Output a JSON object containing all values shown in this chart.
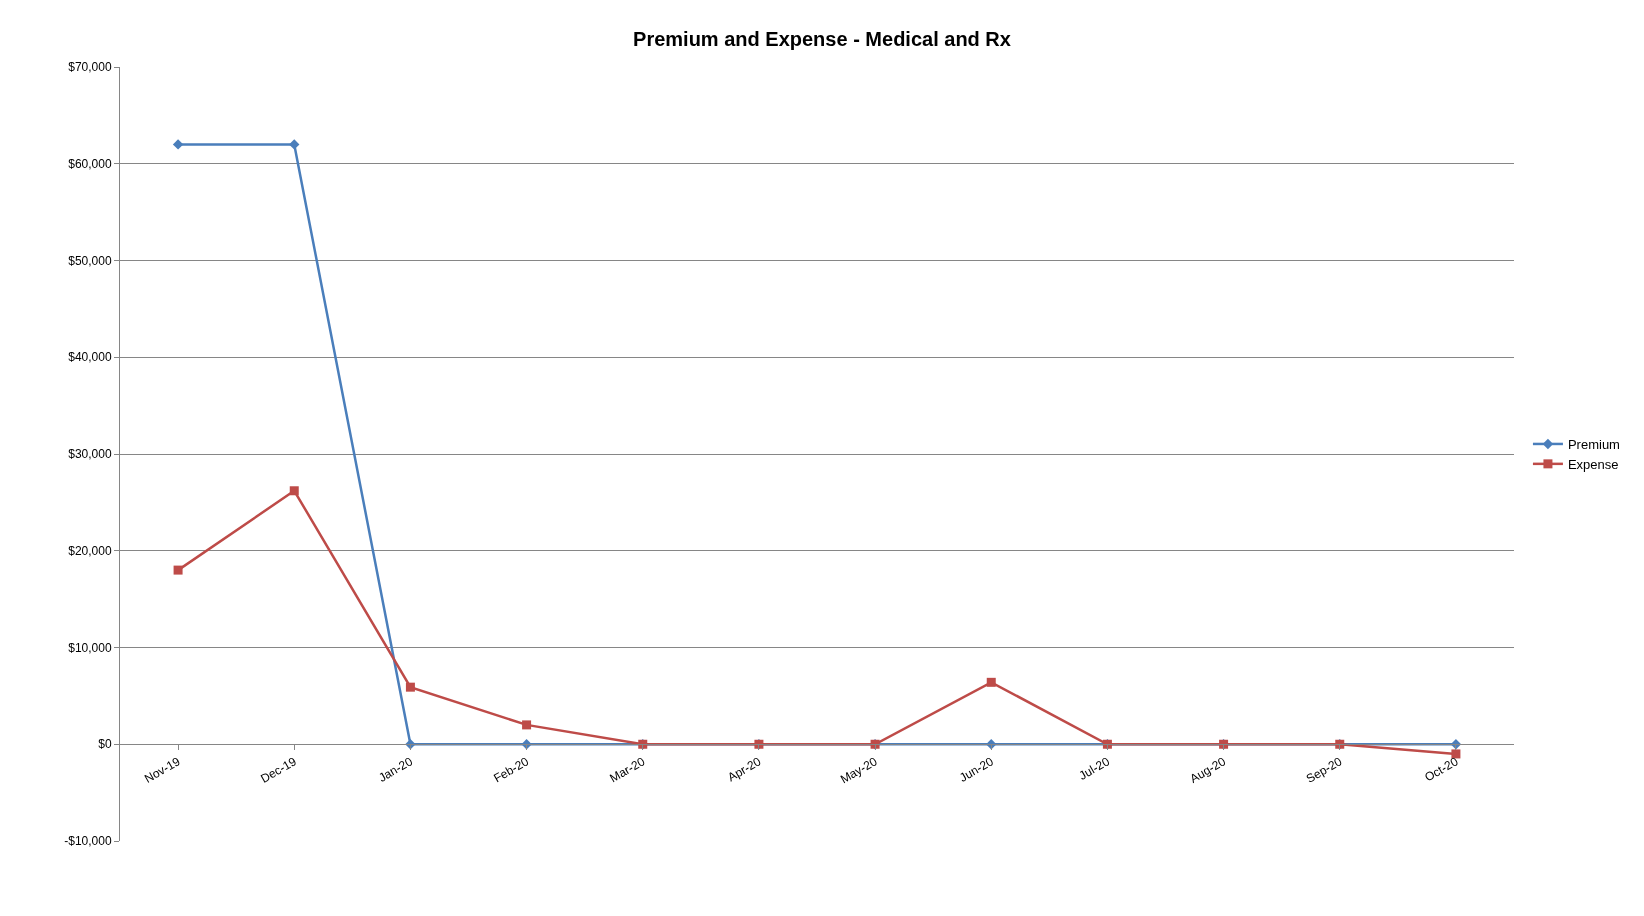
{
  "chart_data": {
    "type": "line",
    "title": "Premium and Expense - Medical and Rx",
    "categories": [
      "Nov-19",
      "Dec-19",
      "Jan-20",
      "Feb-20",
      "Mar-20",
      "Apr-20",
      "May-20",
      "Jun-20",
      "Jul-20",
      "Aug-20",
      "Sep-20",
      "Oct-20"
    ],
    "series": [
      {
        "name": "Premium",
        "color": "#4a7ebb",
        "marker": "diamond",
        "values": [
          62000,
          62000,
          0,
          0,
          0,
          0,
          0,
          0,
          0,
          0,
          0,
          0
        ]
      },
      {
        "name": "Expense",
        "color": "#be4b48",
        "marker": "square",
        "values": [
          18000,
          26200,
          5900,
          2000,
          0,
          0,
          0,
          6400,
          0,
          0,
          0,
          -1000
        ]
      }
    ],
    "ylim": [
      -10000,
      70000
    ],
    "yticks": [
      {
        "value": -10000,
        "label": "-$10,000"
      },
      {
        "value": 0,
        "label": "$0"
      },
      {
        "value": 10000,
        "label": "$10,000"
      },
      {
        "value": 20000,
        "label": "$20,000"
      },
      {
        "value": 30000,
        "label": "$30,000"
      },
      {
        "value": 40000,
        "label": "$40,000"
      },
      {
        "value": 50000,
        "label": "$50,000"
      },
      {
        "value": 60000,
        "label": "$60,000"
      },
      {
        "value": 70000,
        "label": "$70,000"
      }
    ],
    "grid": "y",
    "legend": "right",
    "line_style": "solid"
  }
}
